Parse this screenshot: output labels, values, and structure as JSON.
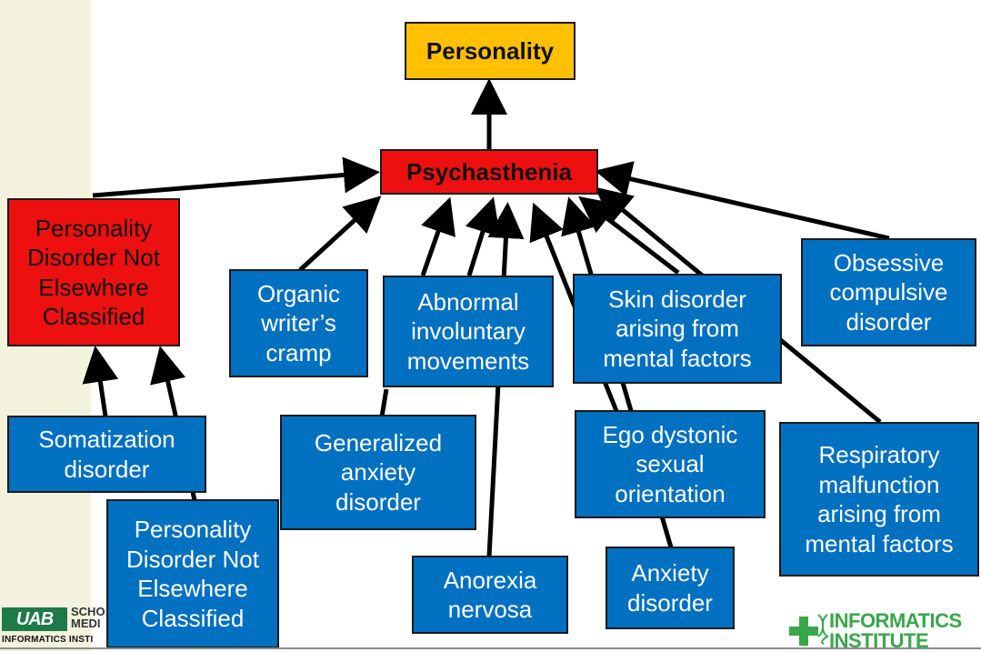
{
  "nodes": {
    "personality": "Personality",
    "psychasthenia": "Psychasthenia",
    "pd_nec_left": "Personality\nDisorder Not\nElsewhere\nClassified",
    "organic_writers_cramp": "Organic\nwriter’s\ncramp",
    "abnormal_involuntary": "Abnormal\ninvoluntary\nmovements",
    "skin_disorder": "Skin disorder\narising from\nmental factors",
    "obsessive_compulsive": "Obsessive\ncompulsive\ndisorder",
    "somatization": "Somatization\ndisorder",
    "generalized_anxiety": "Generalized\nanxiety\ndisorder",
    "ego_dystonic": "Ego dystonic\nsexual\norientation",
    "respiratory": "Respiratory\nmalfunction\narising from\nmental factors",
    "pd_nec_bottom": "Personality\nDisorder Not\nElsewhere\nClassified",
    "anorexia": "Anorexia\nnervosa",
    "anxiety_disorder": "Anxiety\ndisorder"
  },
  "logos": {
    "left_mark": "UAB",
    "left_school": "SCHO\nMEDI",
    "left_institute": "INFORMATICS INSTI",
    "right_line1": "INFORMATICS",
    "right_line2": "INSTITUTE"
  },
  "colors": {
    "node_blue": "#0070c0",
    "node_red": "#ee1010",
    "node_gold": "#ffc000",
    "sidebar": "#f3f2dc",
    "logo_green": "#3aa64a"
  }
}
